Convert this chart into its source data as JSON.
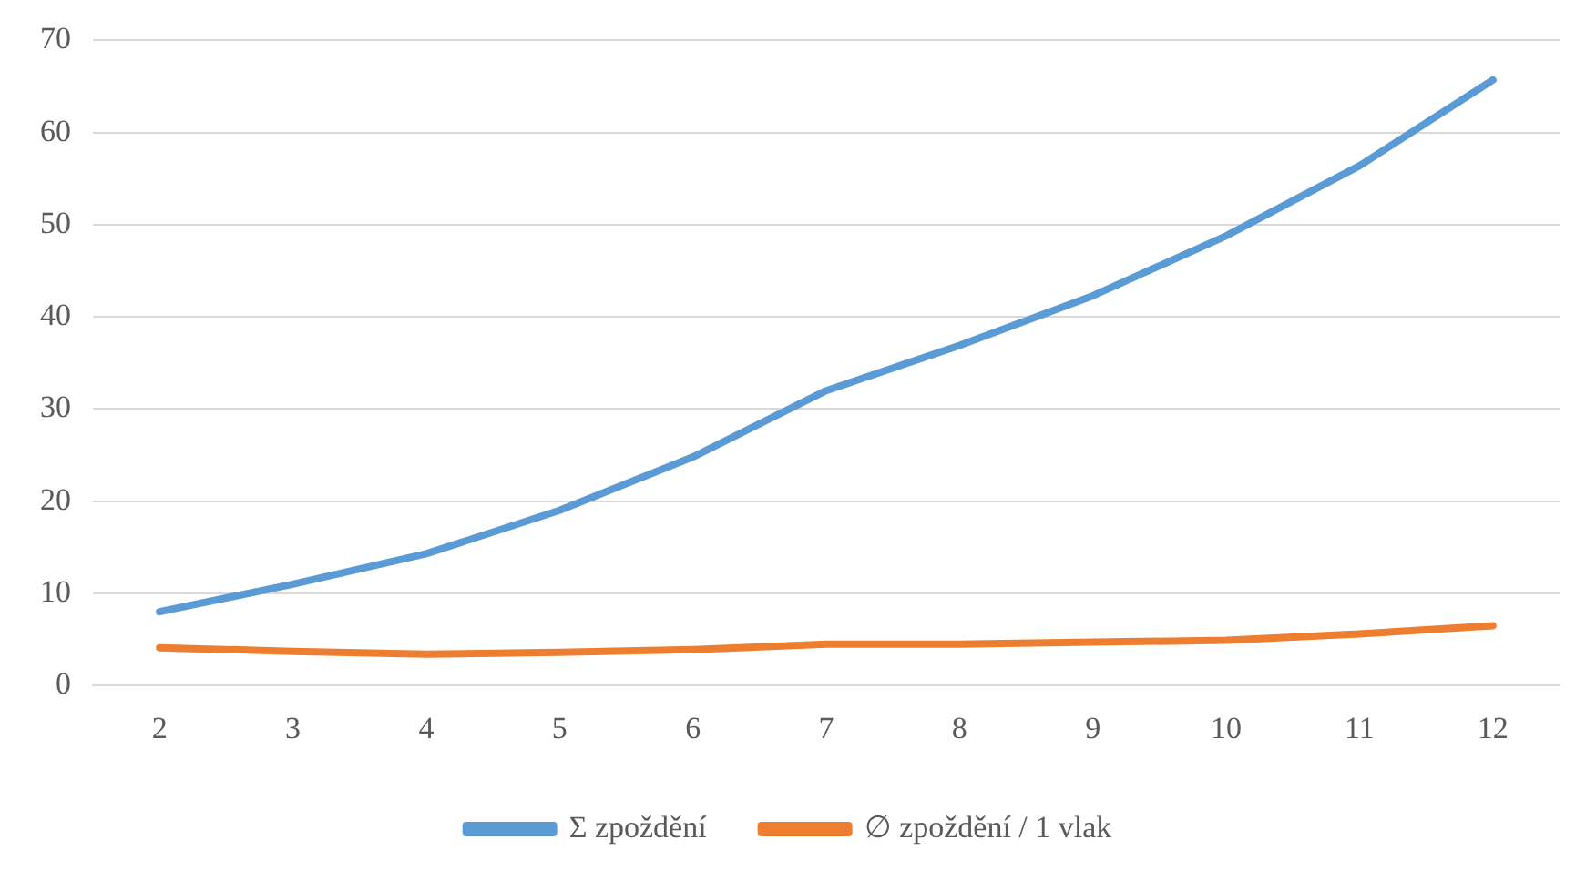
{
  "chart_data": {
    "type": "line",
    "categories": [
      "2",
      "3",
      "4",
      "5",
      "6",
      "7",
      "8",
      "9",
      "10",
      "11",
      "12"
    ],
    "series": [
      {
        "name": "Σ zpoždění",
        "color": "#5b9bd5",
        "values": [
          8.0,
          11.0,
          14.3,
          19.0,
          24.8,
          32.0,
          36.9,
          42.3,
          48.8,
          56.4,
          65.7
        ]
      },
      {
        "name": "∅ zpoždění / 1 vlak",
        "color": "#ed7d31",
        "values": [
          4.1,
          3.7,
          3.4,
          3.6,
          3.9,
          4.5,
          4.5,
          4.7,
          4.9,
          5.6,
          6.5
        ]
      }
    ],
    "ylim": [
      0,
      70
    ],
    "yticks": [
      0,
      10,
      20,
      30,
      40,
      50,
      60,
      70
    ],
    "grid": "y",
    "legend": "bottom",
    "marker": "none",
    "line_style": "solid"
  }
}
